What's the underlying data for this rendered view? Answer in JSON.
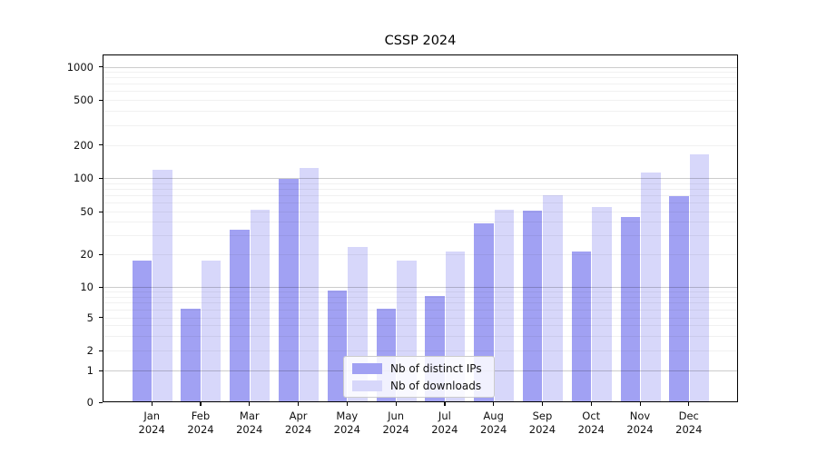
{
  "chart_data": {
    "type": "bar",
    "title": "CSSP 2024",
    "months": [
      "Jan",
      "Feb",
      "Mar",
      "Apr",
      "May",
      "Jun",
      "Jul",
      "Aug",
      "Sep",
      "Oct",
      "Nov",
      "Dec"
    ],
    "year_label": "2024",
    "x_tick_labels": [
      "Jan 2024",
      "Feb 2024",
      "Mar 2024",
      "Apr 2024",
      "May 2024",
      "Jun 2024",
      "Jul 2024",
      "Aug 2024",
      "Sep 2024",
      "Oct 2024",
      "Nov 2024",
      "Dec 2024"
    ],
    "series": [
      {
        "name": "Nb of distinct IPs",
        "color": "#a1a1f3",
        "values": [
          17,
          6,
          33,
          96,
          9,
          6,
          8,
          38,
          50,
          21,
          44,
          68
        ]
      },
      {
        "name": "Nb of downloads",
        "color": "#d7d7fa",
        "values": [
          117,
          17,
          51,
          121,
          23,
          17,
          21,
          51,
          69,
          54,
          110,
          160
        ]
      }
    ],
    "y_scale": "symlog",
    "y_ticks": [
      0,
      1,
      2,
      5,
      10,
      20,
      50,
      100,
      200,
      500,
      1000
    ],
    "y_range": [
      0,
      1400
    ],
    "grid": true,
    "legend_position": "lower center inside plot"
  }
}
